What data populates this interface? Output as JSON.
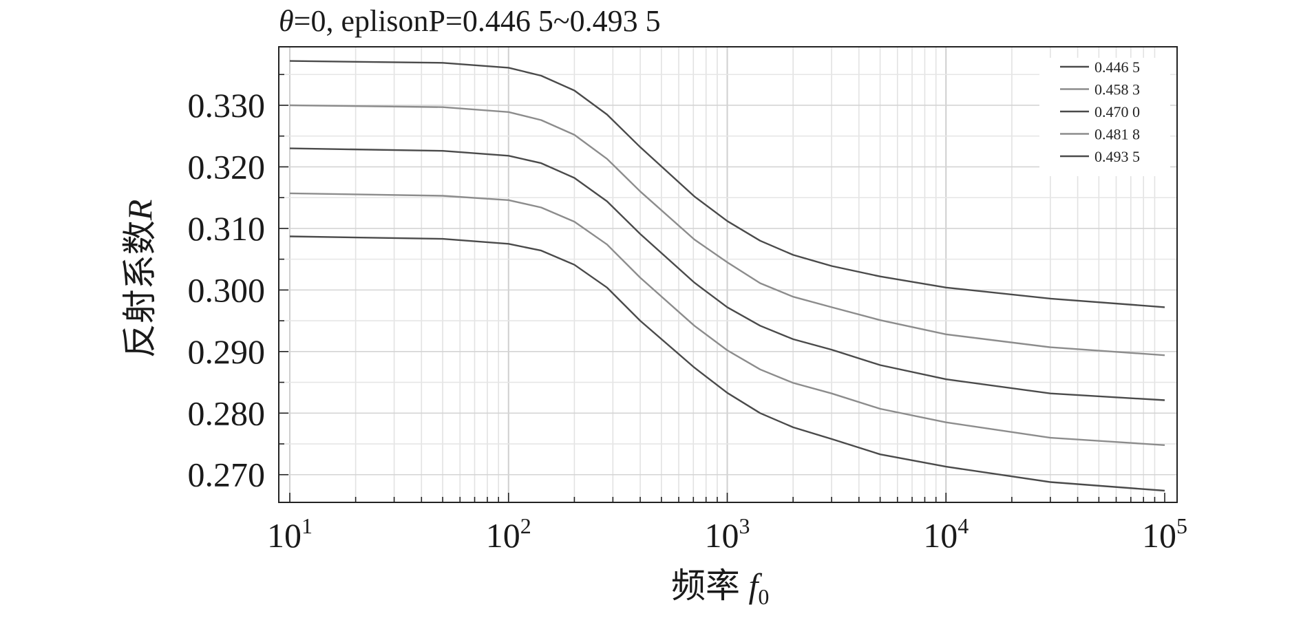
{
  "chart_data": {
    "type": "line",
    "title": "θ=0, eplisonP=0.446 5~0.493 5",
    "title_parts": {
      "symbol": "θ",
      "rest": "=0, eplisonP=0.446 5~0.493 5"
    },
    "xlabel": "频率 f0",
    "xlabel_parts": {
      "text": "频率 ",
      "var": "f",
      "sub": "0"
    },
    "ylabel": "反射系数R",
    "ylabel_parts": {
      "text": "反射系数",
      "var": "R"
    },
    "x_scale": "log",
    "xlim": [
      10,
      100000
    ],
    "ylim": [
      0.2655,
      0.3395
    ],
    "x_ticks": [
      {
        "value": 10,
        "base": "10",
        "exp": "1"
      },
      {
        "value": 100,
        "base": "10",
        "exp": "2"
      },
      {
        "value": 1000,
        "base": "10",
        "exp": "3"
      },
      {
        "value": 10000,
        "base": "10",
        "exp": "4"
      },
      {
        "value": 100000,
        "base": "10",
        "exp": "5"
      }
    ],
    "y_ticks": [
      {
        "value": 0.27,
        "label": "0.270"
      },
      {
        "value": 0.28,
        "label": "0.280"
      },
      {
        "value": 0.29,
        "label": "0.290"
      },
      {
        "value": 0.3,
        "label": "0.300"
      },
      {
        "value": 0.31,
        "label": "0.310"
      },
      {
        "value": 0.32,
        "label": "0.320"
      },
      {
        "value": 0.33,
        "label": "0.330"
      }
    ],
    "grid": true,
    "legend_position": "top-right",
    "x": [
      10,
      50,
      100,
      141,
      200,
      282,
      400,
      707,
      1000,
      1414,
      2000,
      3000,
      5000,
      10000,
      30000,
      100000
    ],
    "series": [
      {
        "name": "0.446 5",
        "color": "#4a4a4a",
        "values": [
          0.3372,
          0.3369,
          0.3361,
          0.3348,
          0.3324,
          0.3285,
          0.3232,
          0.3152,
          0.3112,
          0.308,
          0.3057,
          0.3039,
          0.3022,
          0.3004,
          0.2986,
          0.2972
        ]
      },
      {
        "name": "0.458 3",
        "color": "#8c8c8c",
        "values": [
          0.33,
          0.3297,
          0.3289,
          0.3276,
          0.3252,
          0.3213,
          0.316,
          0.3082,
          0.3045,
          0.3011,
          0.2989,
          0.2972,
          0.2951,
          0.2928,
          0.2907,
          0.2894
        ]
      },
      {
        "name": "0.470 0",
        "color": "#4a4a4a",
        "values": [
          0.323,
          0.3226,
          0.3218,
          0.3206,
          0.3182,
          0.3144,
          0.3091,
          0.3012,
          0.2972,
          0.2942,
          0.292,
          0.2903,
          0.2878,
          0.2855,
          0.2832,
          0.2821
        ]
      },
      {
        "name": "0.481 8",
        "color": "#8c8c8c",
        "values": [
          0.3157,
          0.3153,
          0.3146,
          0.3134,
          0.3111,
          0.3074,
          0.302,
          0.2942,
          0.2902,
          0.2871,
          0.2849,
          0.2832,
          0.2807,
          0.2785,
          0.276,
          0.2748
        ]
      },
      {
        "name": "0.493 5",
        "color": "#4a4a4a",
        "values": [
          0.3087,
          0.3083,
          0.3075,
          0.3064,
          0.3041,
          0.3004,
          0.295,
          0.2874,
          0.2833,
          0.28,
          0.2777,
          0.2758,
          0.2733,
          0.2713,
          0.2688,
          0.2674
        ]
      }
    ]
  }
}
